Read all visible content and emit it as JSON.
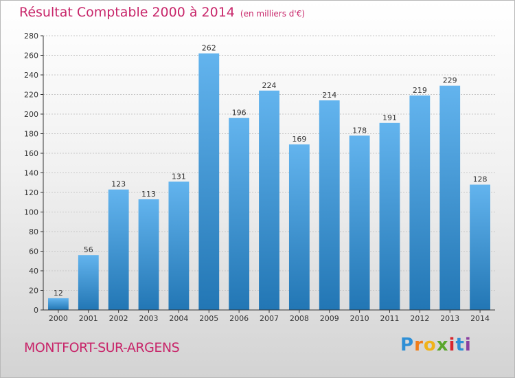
{
  "title": {
    "main": "Résultat Comptable 2000 à 2014",
    "unit": "(en milliers d'€)"
  },
  "town": "MONTFORT-SUR-ARGENS",
  "logo": {
    "letters": [
      "P",
      "r",
      "o",
      "x",
      "i",
      "t",
      "i"
    ],
    "colors": [
      "#2e8fd6",
      "#f07d1a",
      "#f0b31a",
      "#5aa62c",
      "#d8262d",
      "#2e8fd6",
      "#8a3fa0"
    ]
  },
  "colors": {
    "title": "#c8266a",
    "bar_light": "#63b4ee",
    "bar_dark": "#2276b4",
    "grid": "#c8c8c8",
    "axis": "#333333"
  },
  "chart_data": {
    "type": "bar",
    "title": "Résultat Comptable 2000 à 2014",
    "ylabel": "en milliers d'€",
    "xlabel": "",
    "categories": [
      "2000",
      "2001",
      "2002",
      "2003",
      "2004",
      "2005",
      "2006",
      "2007",
      "2008",
      "2009",
      "2010",
      "2011",
      "2012",
      "2013",
      "2014"
    ],
    "values": [
      12,
      56,
      123,
      113,
      131,
      262,
      196,
      224,
      169,
      214,
      178,
      191,
      219,
      229,
      128
    ],
    "ylim": [
      0,
      280
    ],
    "yticks": [
      0,
      20,
      40,
      60,
      80,
      100,
      120,
      140,
      160,
      180,
      200,
      220,
      240,
      260,
      280
    ],
    "grid": true
  }
}
